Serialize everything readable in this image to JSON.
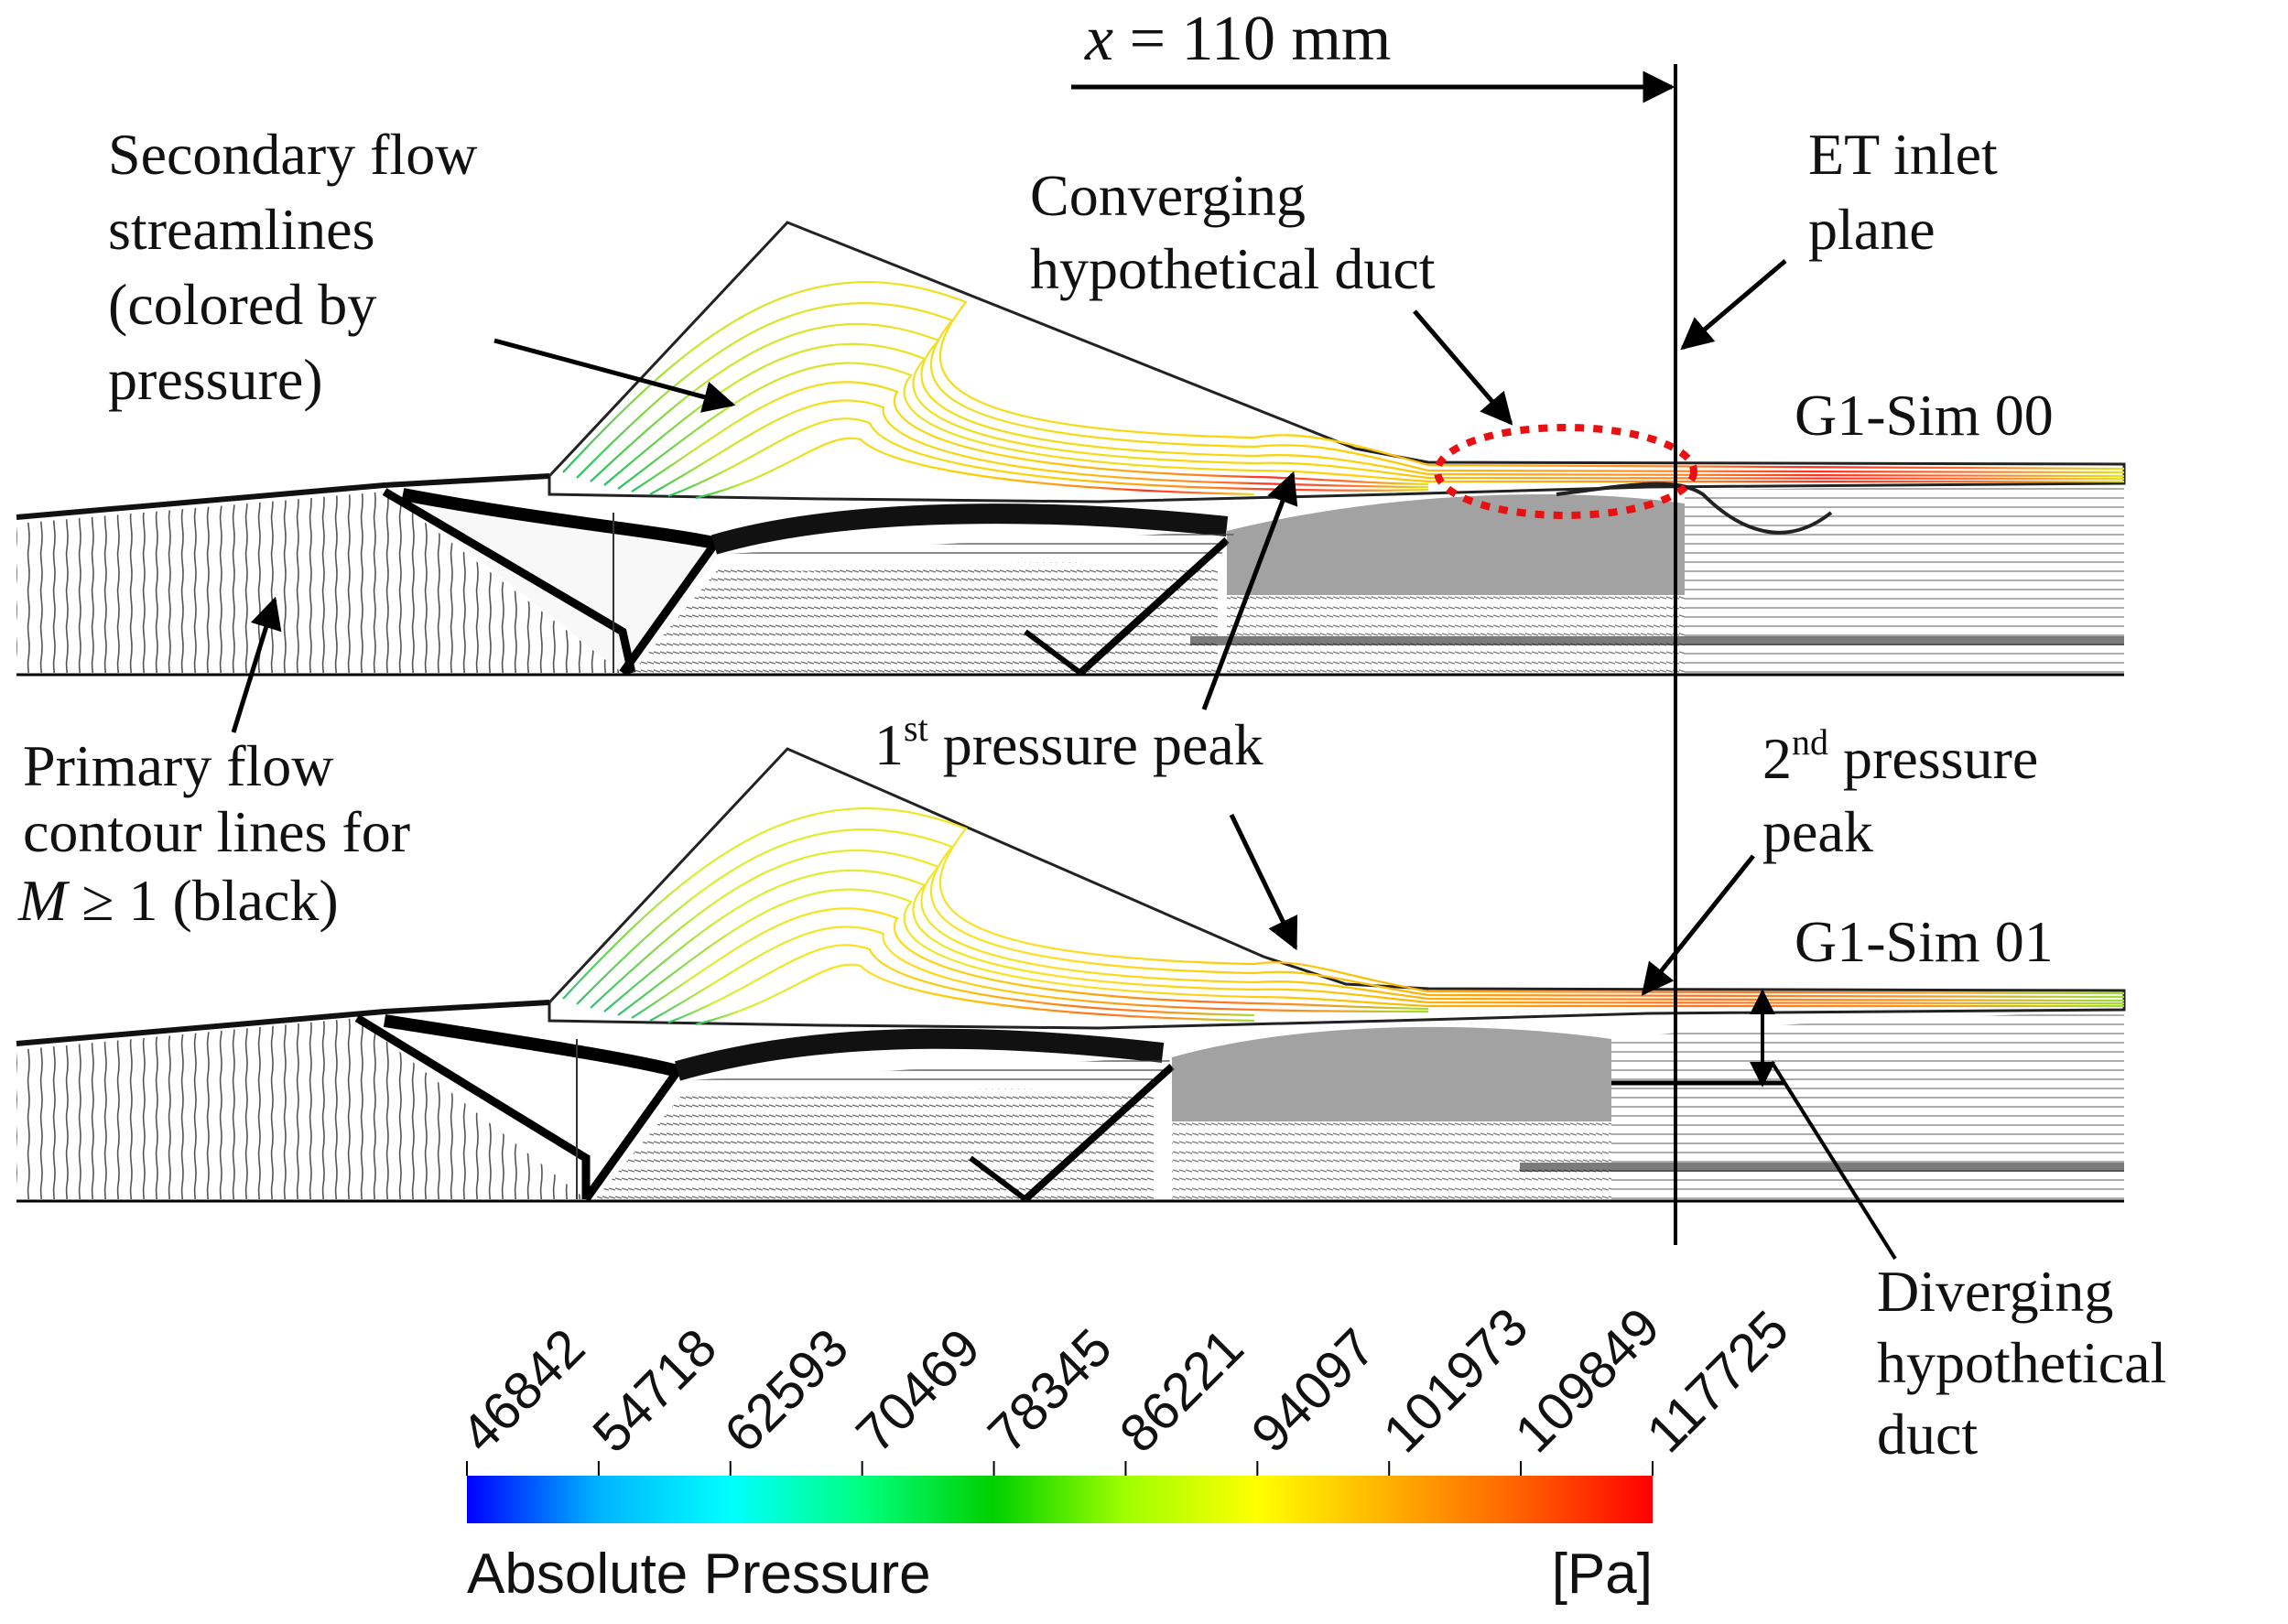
{
  "annotations": {
    "position": {
      "var": "x",
      "rest": " = 110 mm"
    },
    "secondary_flow": [
      "Secondary flow",
      "streamlines",
      "(colored by",
      "pressure)"
    ],
    "primary_flow": {
      "line1": "Primary flow",
      "line2": "contour lines for",
      "line3_var": "M",
      "line3_rest": " ≥ 1 (black)"
    },
    "converging_duct": [
      "Converging",
      "hypothetical duct"
    ],
    "et_inlet": [
      "ET inlet",
      "plane"
    ],
    "first_peak": {
      "num": "1",
      "sup": "st",
      "rest": " pressure peak"
    },
    "second_peak": {
      "num": "2",
      "sup": "nd",
      "rest": " pressure",
      "line2": "peak"
    },
    "diverging_duct": [
      "Diverging",
      "hypothetical",
      "duct"
    ]
  },
  "panels": [
    {
      "label": "G1-Sim 00"
    },
    {
      "label": "G1-Sim 01"
    }
  ],
  "colorbar": {
    "title": "Absolute Pressure",
    "unit": "[Pa]",
    "ticks": [
      "46842",
      "54718",
      "62593",
      "70469",
      "78345",
      "86221",
      "94097",
      "101973",
      "109849",
      "117725"
    ],
    "gradient": [
      "#0000ff",
      "#00b4ff",
      "#00ffff",
      "#00ff80",
      "#00d000",
      "#a0ff00",
      "#ffff00",
      "#ffb000",
      "#ff6000",
      "#ff0000"
    ]
  }
}
